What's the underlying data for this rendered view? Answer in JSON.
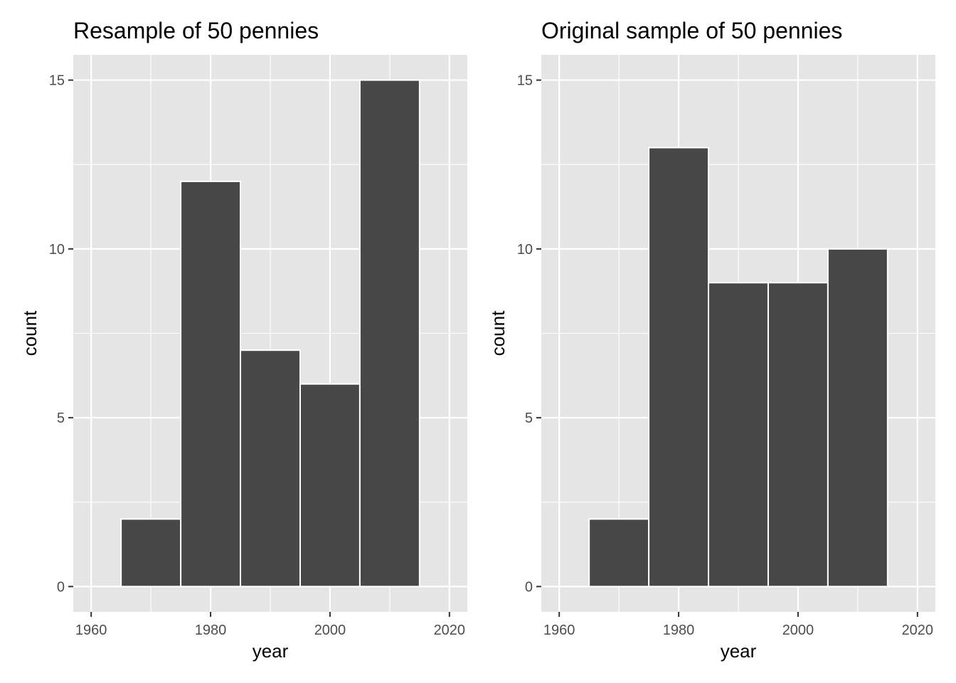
{
  "chart_data": [
    {
      "type": "bar",
      "title": "Resample of 50 pennies",
      "xlabel": "year",
      "ylabel": "count",
      "xlim": [
        1957,
        2023
      ],
      "ylim": [
        -0.75,
        15.75
      ],
      "xticks": [
        "1960",
        "1980",
        "2000",
        "2020"
      ],
      "yticks": [
        "0",
        "5",
        "10",
        "15"
      ],
      "grid": true,
      "bins": [
        {
          "start": 1965,
          "end": 1975,
          "value": 2
        },
        {
          "start": 1975,
          "end": 1985,
          "value": 12
        },
        {
          "start": 1985,
          "end": 1995,
          "value": 7
        },
        {
          "start": 1995,
          "end": 2005,
          "value": 6
        },
        {
          "start": 2005,
          "end": 2015,
          "value": 15
        }
      ]
    },
    {
      "type": "bar",
      "title": "Original sample of 50 pennies",
      "xlabel": "year",
      "ylabel": "count",
      "xlim": [
        1957,
        2023
      ],
      "ylim": [
        -0.75,
        15.75
      ],
      "xticks": [
        "1960",
        "1980",
        "2000",
        "2020"
      ],
      "yticks": [
        "0",
        "5",
        "10",
        "15"
      ],
      "grid": true,
      "bins": [
        {
          "start": 1965,
          "end": 1975,
          "value": 2
        },
        {
          "start": 1975,
          "end": 1985,
          "value": 13
        },
        {
          "start": 1985,
          "end": 1995,
          "value": 9
        },
        {
          "start": 1995,
          "end": 2005,
          "value": 9
        },
        {
          "start": 2005,
          "end": 2015,
          "value": 10
        }
      ]
    }
  ],
  "colors": {
    "panel_background": "#e5e5e5",
    "grid_line": "#ffffff",
    "bar_fill": "#474747",
    "bar_stroke": "#ffffff",
    "tick_mark": "#333333"
  }
}
